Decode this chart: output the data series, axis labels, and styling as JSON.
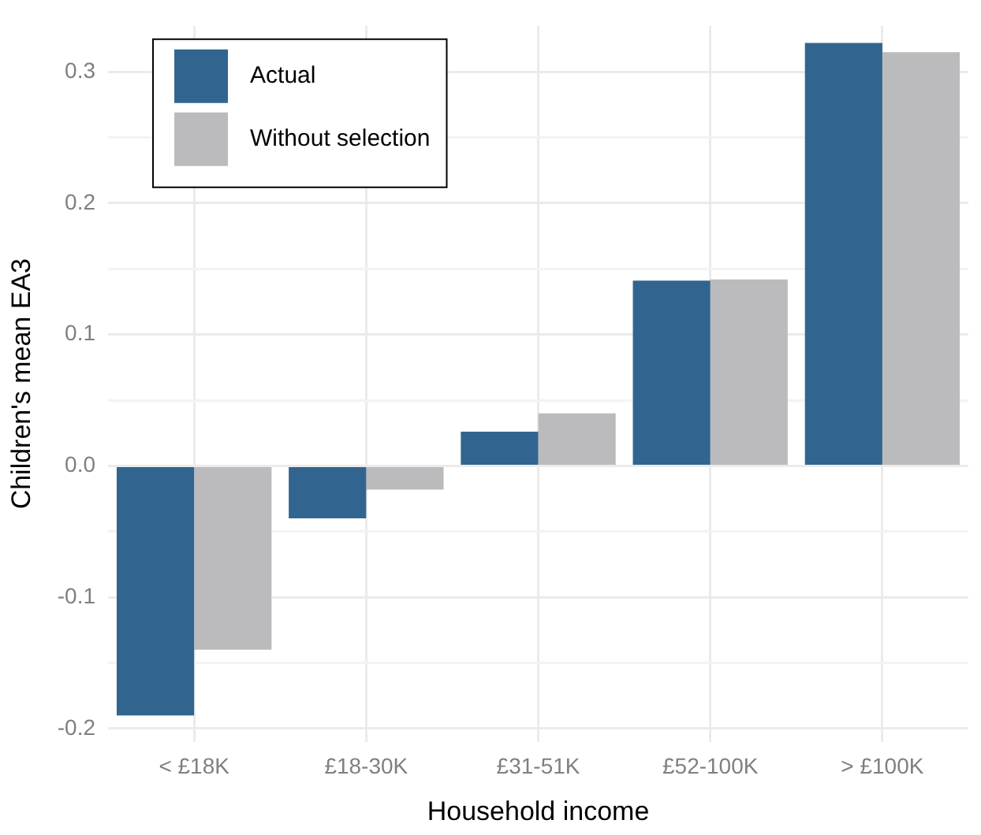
{
  "chart_data": {
    "type": "bar",
    "xlabel": "Household income",
    "ylabel": "Children's mean EA3",
    "categories": [
      "< £18K",
      "£18-30K",
      "£31-51K",
      "£52-100K",
      "> £100K"
    ],
    "series": [
      {
        "name": "Actual",
        "color": "#31658f",
        "values": [
          -0.19,
          -0.04,
          0.026,
          0.141,
          0.322
        ]
      },
      {
        "name": "Without selection",
        "color": "#bbbbbd",
        "values": [
          -0.14,
          -0.018,
          0.04,
          0.142,
          0.315
        ]
      }
    ],
    "ylim": [
      -0.21,
      0.335
    ],
    "yticks": [
      {
        "value": -0.2,
        "label": "-0.2"
      },
      {
        "value": -0.15,
        "label": null
      },
      {
        "value": -0.1,
        "label": "-0.1"
      },
      {
        "value": -0.05,
        "label": null
      },
      {
        "value": 0,
        "label": "0.0"
      },
      {
        "value": 0.05,
        "label": null
      },
      {
        "value": 0.1,
        "label": "0.1"
      },
      {
        "value": 0.15,
        "label": null
      },
      {
        "value": 0.2,
        "label": "0.2"
      },
      {
        "value": 0.25,
        "label": null
      },
      {
        "value": 0.3,
        "label": "0.3"
      }
    ],
    "grid": true,
    "legend": "top left"
  }
}
